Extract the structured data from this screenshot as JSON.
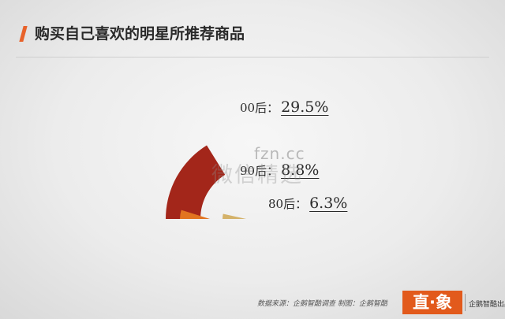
{
  "header": {
    "title": "购买自己喜欢的明星所推荐商品",
    "accent_color": "#e8622a"
  },
  "chart_data": {
    "type": "pie",
    "title": "购买自己喜欢的明星所推荐商品",
    "categories": [
      "00后",
      "90后",
      "80后"
    ],
    "values": [
      29.5,
      8.8,
      6.3
    ],
    "value_labels": [
      "29.5%",
      "8.8%",
      "6.3%"
    ],
    "colors": [
      "#a3261a",
      "#e27420",
      "#d4b26a"
    ],
    "unit": "%",
    "legend": "none"
  },
  "labels": [
    {
      "prefix": "00后：",
      "value": "29.5%"
    },
    {
      "prefix": "90后：",
      "value": "8.8%"
    },
    {
      "prefix": "80后：",
      "value": "6.3%"
    }
  ],
  "watermark": {
    "line1": "fzn.cc",
    "line2": "微信精选"
  },
  "footer": {
    "source": "数据来源：企鹅智酷调查 制图：企鹅智酷",
    "logo": "直·象",
    "sub_logo": "企鹅智酷出品"
  }
}
